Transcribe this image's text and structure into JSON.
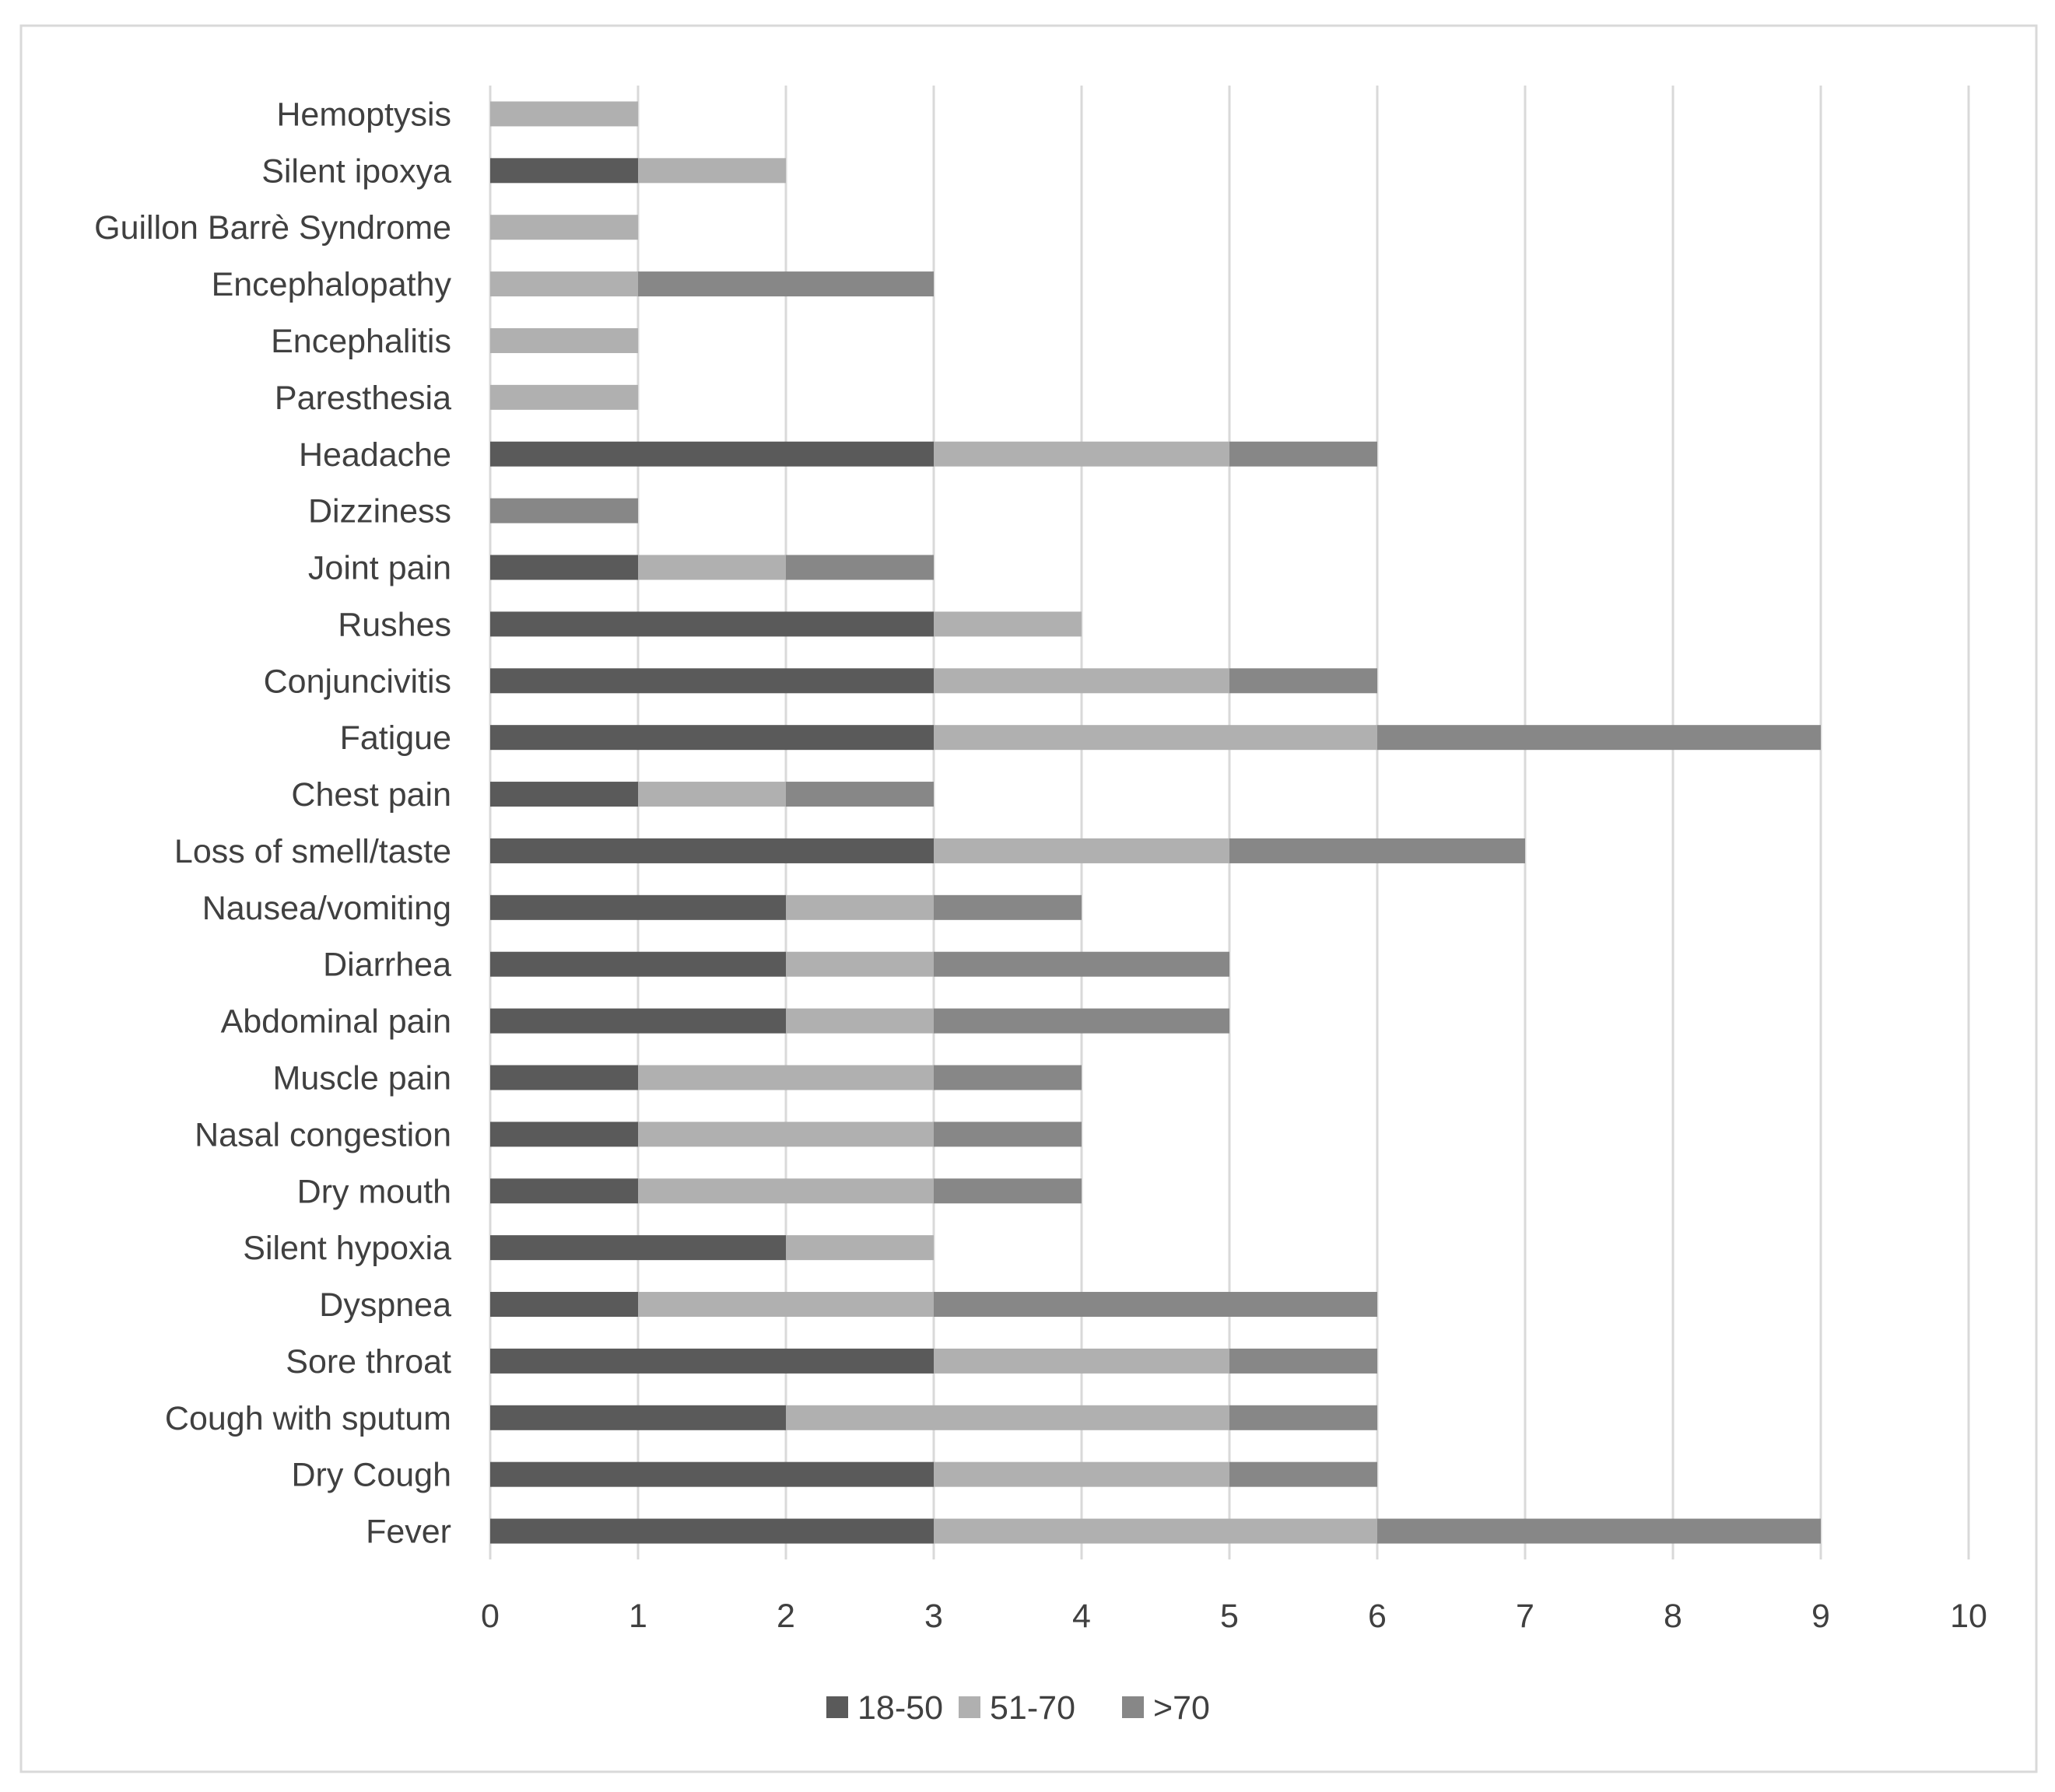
{
  "chart_data": {
    "type": "bar",
    "orientation": "horizontal",
    "stacked": true,
    "title": "",
    "xlabel": "",
    "ylabel": "",
    "xlim": [
      0,
      10
    ],
    "x_ticks": [
      "0",
      "1",
      "2",
      "3",
      "4",
      "5",
      "6",
      "7",
      "8",
      "9",
      "10"
    ],
    "grid": "vertical",
    "legend_position": "bottom",
    "categories": [
      "Fever",
      "Dry Cough",
      "Cough with sputum",
      "Sore throat",
      "Dyspnea",
      "Silent hypoxia",
      "Dry mouth",
      "Nasal congestion",
      "Muscle pain",
      "Abdominal pain",
      "Diarrhea",
      "Nausea/vomiting",
      "Loss of smell/taste",
      "Chest pain",
      "Fatigue",
      "Conjuncivitis",
      "Rushes",
      "Joint pain",
      "Dizziness",
      "Headache",
      "Paresthesia",
      "Encephalitis",
      "Encephalopathy",
      "Guillon Barrè Syndrome",
      "Silent ipoxya",
      "Hemoptysis"
    ],
    "series": [
      {
        "name": "18-50",
        "color": "#5a5a5a",
        "values": [
          3,
          3,
          2,
          3,
          1,
          2,
          1,
          1,
          1,
          2,
          2,
          2,
          3,
          1,
          3,
          3,
          3,
          1,
          0,
          3,
          0,
          0,
          0,
          0,
          1,
          0
        ]
      },
      {
        "name": "51-70",
        "color": "#b0b0b0",
        "values": [
          3,
          2,
          3,
          2,
          2,
          1,
          2,
          2,
          2,
          1,
          1,
          1,
          2,
          1,
          3,
          2,
          1,
          1,
          0,
          2,
          1,
          1,
          1,
          1,
          1,
          1
        ]
      },
      {
        "name": ">70",
        "color": "#878787",
        "values": [
          3,
          1,
          1,
          1,
          3,
          0,
          1,
          1,
          1,
          2,
          2,
          1,
          2,
          1,
          3,
          1,
          0,
          1,
          1,
          1,
          0,
          0,
          2,
          0,
          0,
          0
        ]
      }
    ]
  }
}
